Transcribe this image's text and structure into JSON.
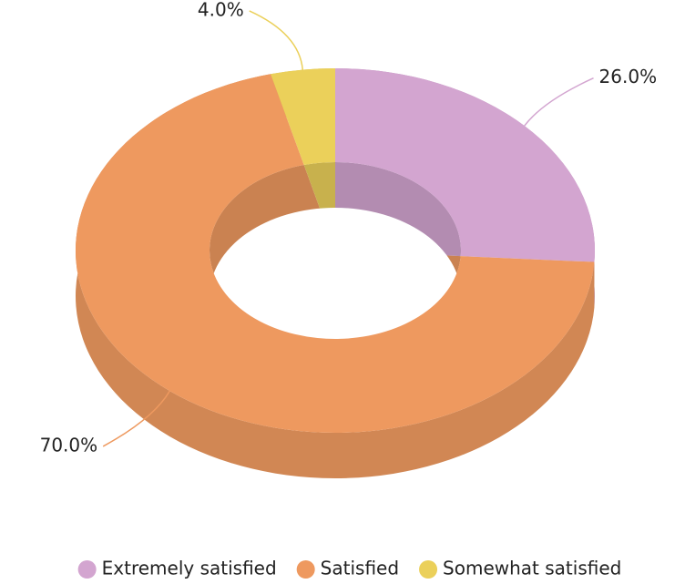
{
  "chart_data": {
    "type": "pie",
    "donut": true,
    "three_d": true,
    "categories": [
      "Extremely satisfied",
      "Satisfied",
      "Somewhat satisfied"
    ],
    "values": [
      26,
      70,
      4
    ],
    "value_labels": [
      "26.0%",
      "70.0%",
      "4.0%"
    ],
    "colors": [
      "#d3a5d0",
      "#ee995f",
      "#ebd05a"
    ],
    "legend": "bottom"
  }
}
